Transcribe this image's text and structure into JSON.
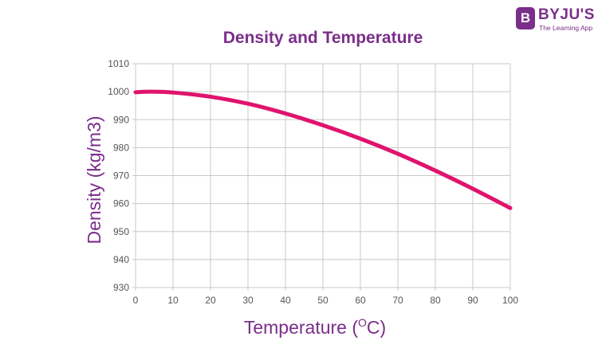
{
  "logo": {
    "mark": "B",
    "name": "BYJU'S",
    "tagline": "The Learning App"
  },
  "chart_data": {
    "type": "line",
    "title": "Density and Temperature",
    "xlabel": "Temperature (",
    "xlabel_sup": "O",
    "xlabel_end": "C)",
    "ylabel": "Density (kg/m3)",
    "xlim": [
      0,
      100
    ],
    "ylim": [
      930,
      1010
    ],
    "xticks": [
      0,
      10,
      20,
      30,
      40,
      50,
      60,
      70,
      80,
      90,
      100
    ],
    "yticks": [
      930,
      940,
      950,
      960,
      970,
      980,
      990,
      1000,
      1010
    ],
    "grid": true,
    "series": [
      {
        "x": [
          0,
          4,
          10,
          20,
          30,
          40,
          50,
          60,
          70,
          80,
          90,
          100
        ],
        "y": [
          999.8,
          1000.0,
          999.7,
          998.2,
          995.7,
          992.2,
          988.0,
          983.2,
          977.8,
          971.8,
          965.3,
          958.4
        ],
        "color": "#e0136e"
      }
    ],
    "colors": {
      "title": "#7b2e8a",
      "axis_label": "#7b2e8a",
      "grid": "#c8c8c8",
      "tick_label": "#555555"
    }
  }
}
